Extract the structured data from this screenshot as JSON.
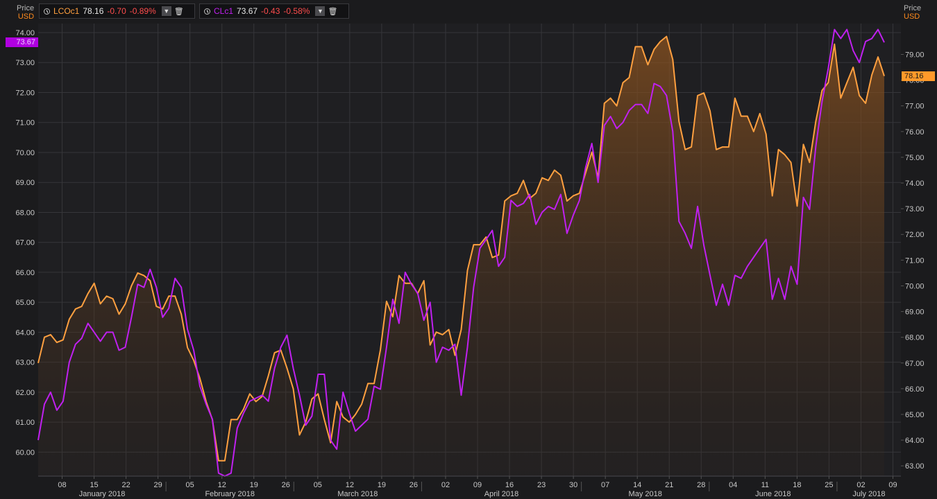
{
  "legend": {
    "brent": {
      "ric": "LCOc1",
      "last": "78.16",
      "chg": "-0.70",
      "pct": "-0.89%",
      "color": "#ffa040"
    },
    "wti": {
      "ric": "CLc1",
      "last": "73.67",
      "chg": "-0.43",
      "pct": "-0.58%",
      "color": "#c020f0"
    }
  },
  "axes": {
    "left_title": "Price",
    "left_unit": "USD",
    "right_title": "Price",
    "right_unit": "USD"
  },
  "tags": {
    "left_last": "73.67",
    "right_last": "78.16"
  },
  "chart_data": {
    "type": "line",
    "x_tick_labels": [
      "08",
      "15",
      "22",
      "29",
      "05",
      "12",
      "19",
      "26",
      "05",
      "12",
      "19",
      "26",
      "02",
      "09",
      "16",
      "23",
      "30",
      "07",
      "14",
      "21",
      "28",
      "04",
      "11",
      "18",
      "25",
      "02",
      "09"
    ],
    "month_labels": [
      "January 2018",
      "February 2018",
      "March 2018",
      "April 2018",
      "May 2018",
      "June 2018",
      "July 2018"
    ],
    "y_left": {
      "ylim": [
        59.2,
        74.3
      ],
      "ticks": [
        "60.00",
        "61.00",
        "62.00",
        "63.00",
        "64.00",
        "65.00",
        "66.00",
        "67.00",
        "68.00",
        "69.00",
        "70.00",
        "71.00",
        "72.00",
        "73.00",
        "74.00"
      ]
    },
    "y_right": {
      "ylim": [
        62.6,
        80.2
      ],
      "ticks": [
        "63.00",
        "64.00",
        "65.00",
        "66.00",
        "67.00",
        "68.00",
        "69.00",
        "70.00",
        "71.00",
        "72.00",
        "73.00",
        "74.00",
        "75.00",
        "76.00",
        "77.00",
        "78.00",
        "79.00"
      ]
    },
    "series": [
      {
        "name": "LCOc1",
        "axis": "right",
        "color": "#ffa040",
        "fill": true,
        "values": [
          67.0,
          68.0,
          68.1,
          67.8,
          67.9,
          68.7,
          69.1,
          69.2,
          69.7,
          70.1,
          69.3,
          69.6,
          69.5,
          68.9,
          69.3,
          70.0,
          70.5,
          70.4,
          70.2,
          69.2,
          69.1,
          69.6,
          69.6,
          68.9,
          67.6,
          67.1,
          66.4,
          65.5,
          64.8,
          63.2,
          63.2,
          64.8,
          64.8,
          65.2,
          65.8,
          65.5,
          65.7,
          66.5,
          67.4,
          67.5,
          66.8,
          66.0,
          64.2,
          64.7,
          65.6,
          65.8,
          64.8,
          63.9,
          65.5,
          64.9,
          64.7,
          65.0,
          65.4,
          66.2,
          66.2,
          67.5,
          69.4,
          68.8,
          70.4,
          70.1,
          70.1,
          69.7,
          70.2,
          67.7,
          68.2,
          68.1,
          68.3,
          67.3,
          68.3,
          70.6,
          71.6,
          71.6,
          71.9,
          71.1,
          71.2,
          73.3,
          73.5,
          73.6,
          74.1,
          73.4,
          73.6,
          74.2,
          74.1,
          74.5,
          74.3,
          73.3,
          73.5,
          73.6,
          74.4,
          75.2,
          74.2,
          77.1,
          77.3,
          77.0,
          77.9,
          78.1,
          79.3,
          79.3,
          78.6,
          79.2,
          79.5,
          79.7,
          78.8,
          76.4,
          75.3,
          75.4,
          77.4,
          77.5,
          76.8,
          75.3,
          75.4,
          75.4,
          77.3,
          76.6,
          76.6,
          76.0,
          76.7,
          75.9,
          73.5,
          75.3,
          75.1,
          74.8,
          73.1,
          75.5,
          74.8,
          76.4,
          77.6,
          77.9,
          79.4,
          77.3,
          77.9,
          78.5,
          77.4,
          77.1,
          78.2,
          78.9,
          78.16
        ]
      },
      {
        "name": "CLc1",
        "axis": "left",
        "color": "#c020f0",
        "fill": false,
        "values": [
          60.4,
          61.6,
          62.0,
          61.4,
          61.7,
          63.0,
          63.6,
          63.8,
          64.3,
          64.0,
          63.7,
          64.0,
          64.0,
          63.4,
          63.5,
          64.5,
          65.6,
          65.5,
          66.1,
          65.5,
          64.5,
          64.8,
          65.8,
          65.5,
          64.1,
          63.4,
          62.2,
          61.6,
          61.1,
          59.3,
          59.2,
          59.3,
          60.8,
          61.3,
          61.7,
          61.8,
          61.9,
          61.7,
          62.8,
          63.5,
          63.9,
          62.8,
          61.9,
          60.9,
          61.2,
          62.6,
          62.6,
          60.4,
          60.1,
          62.0,
          61.3,
          60.7,
          60.9,
          61.1,
          62.2,
          62.1,
          63.5,
          65.1,
          64.3,
          66.0,
          65.6,
          65.3,
          64.4,
          65.0,
          63.0,
          63.5,
          63.4,
          63.6,
          61.9,
          63.5,
          65.5,
          66.8,
          67.1,
          67.4,
          66.2,
          66.5,
          68.4,
          68.2,
          68.3,
          68.6,
          67.6,
          68.0,
          68.2,
          68.1,
          68.6,
          67.3,
          67.9,
          68.4,
          69.5,
          70.3,
          69.0,
          70.9,
          71.2,
          70.8,
          71.0,
          71.4,
          71.6,
          71.6,
          71.3,
          72.3,
          72.2,
          71.9,
          70.7,
          67.7,
          67.3,
          66.8,
          68.2,
          66.9,
          65.9,
          64.9,
          65.6,
          64.9,
          65.9,
          65.8,
          66.2,
          66.5,
          66.8,
          67.1,
          65.1,
          65.8,
          65.1,
          66.2,
          65.6,
          68.5,
          68.1,
          70.2,
          71.7,
          72.8,
          74.1,
          73.8,
          74.1,
          73.4,
          73.0,
          73.7,
          73.8,
          74.1,
          73.67
        ]
      }
    ]
  }
}
